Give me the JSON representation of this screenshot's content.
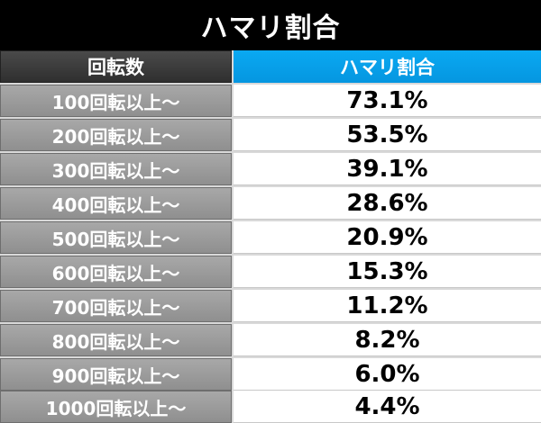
{
  "title": "ハマリ割合",
  "header": {
    "col1": "回転数",
    "col2": "ハマリ割合"
  },
  "rows": [
    {
      "spins": "100回転以上～",
      "rate": "73.1%"
    },
    {
      "spins": "200回転以上～",
      "rate": "53.5%"
    },
    {
      "spins": "300回転以上～",
      "rate": "39.1%"
    },
    {
      "spins": "400回転以上～",
      "rate": "28.6%"
    },
    {
      "spins": "500回転以上～",
      "rate": "20.9%"
    },
    {
      "spins": "600回転以上～",
      "rate": "15.3%"
    },
    {
      "spins": "700回転以上～",
      "rate": "11.2%"
    },
    {
      "spins": "800回転以上～",
      "rate": "8.2%"
    },
    {
      "spins": "900回転以上～",
      "rate": "6.0%"
    },
    {
      "spins": "1000回転以上～",
      "rate": "4.4%"
    }
  ],
  "colors": {
    "title_bg": "#000000",
    "header_left_bg": "#3a3a3a",
    "header_right_bg": "#0aa3ee",
    "row_label_bg": "#9a9a9a",
    "value_bg": "#ffffff"
  }
}
